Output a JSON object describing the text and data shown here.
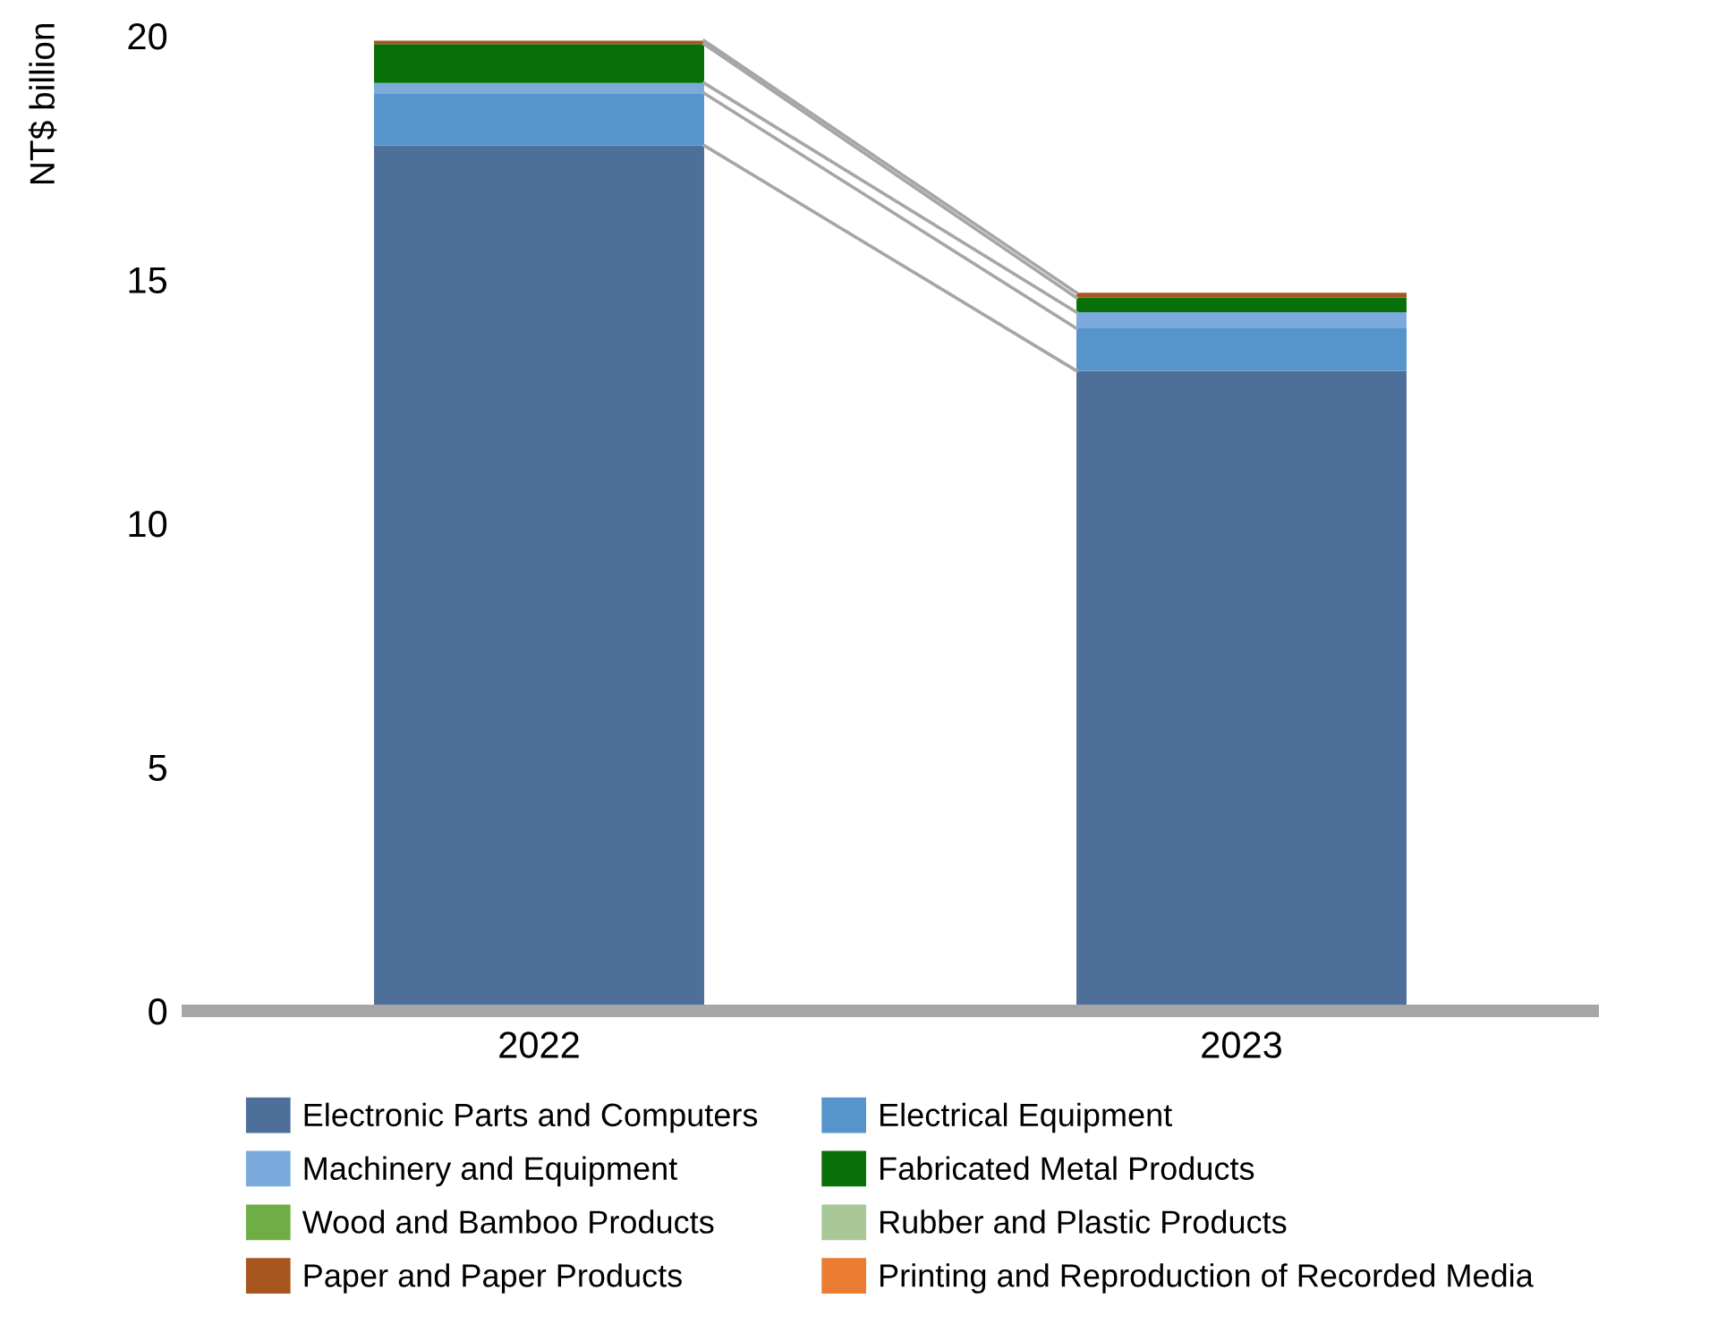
{
  "chart_data": {
    "type": "bar",
    "stacked": true,
    "ylabel": "NT$ billion",
    "categories": [
      "2022",
      "2023"
    ],
    "series": [
      {
        "name": "Electronic Parts and Computers",
        "color": "#4f6f9b",
        "values": [
          17.75,
          13.13
        ]
      },
      {
        "name": "Electrical Equipment",
        "color": "#5694cb",
        "values": [
          1.07,
          0.87
        ]
      },
      {
        "name": "Machinery and Equipment",
        "color": "#7aabdc",
        "values": [
          0.21,
          0.33
        ]
      },
      {
        "name": "Fabricated Metal Products",
        "color": "#087009",
        "values": [
          0.8,
          0.3
        ]
      },
      {
        "name": "Wood and Bamboo Products",
        "color": "#6fae45",
        "values": [
          0,
          0
        ]
      },
      {
        "name": "Rubber and Plastic Products",
        "color": "#a7c896",
        "values": [
          0,
          0
        ]
      },
      {
        "name": "Paper and Paper Products",
        "color": "#a8561f",
        "values": [
          0.07,
          0.1
        ]
      },
      {
        "name": "Printing and Reproduction of Recorded Media",
        "color": "#eb7d32",
        "values": [
          0,
          0
        ]
      }
    ],
    "ylim": [
      0,
      20
    ],
    "yticks": [
      0,
      5,
      10,
      15,
      20
    ],
    "grid": false,
    "legend": "bottom"
  }
}
